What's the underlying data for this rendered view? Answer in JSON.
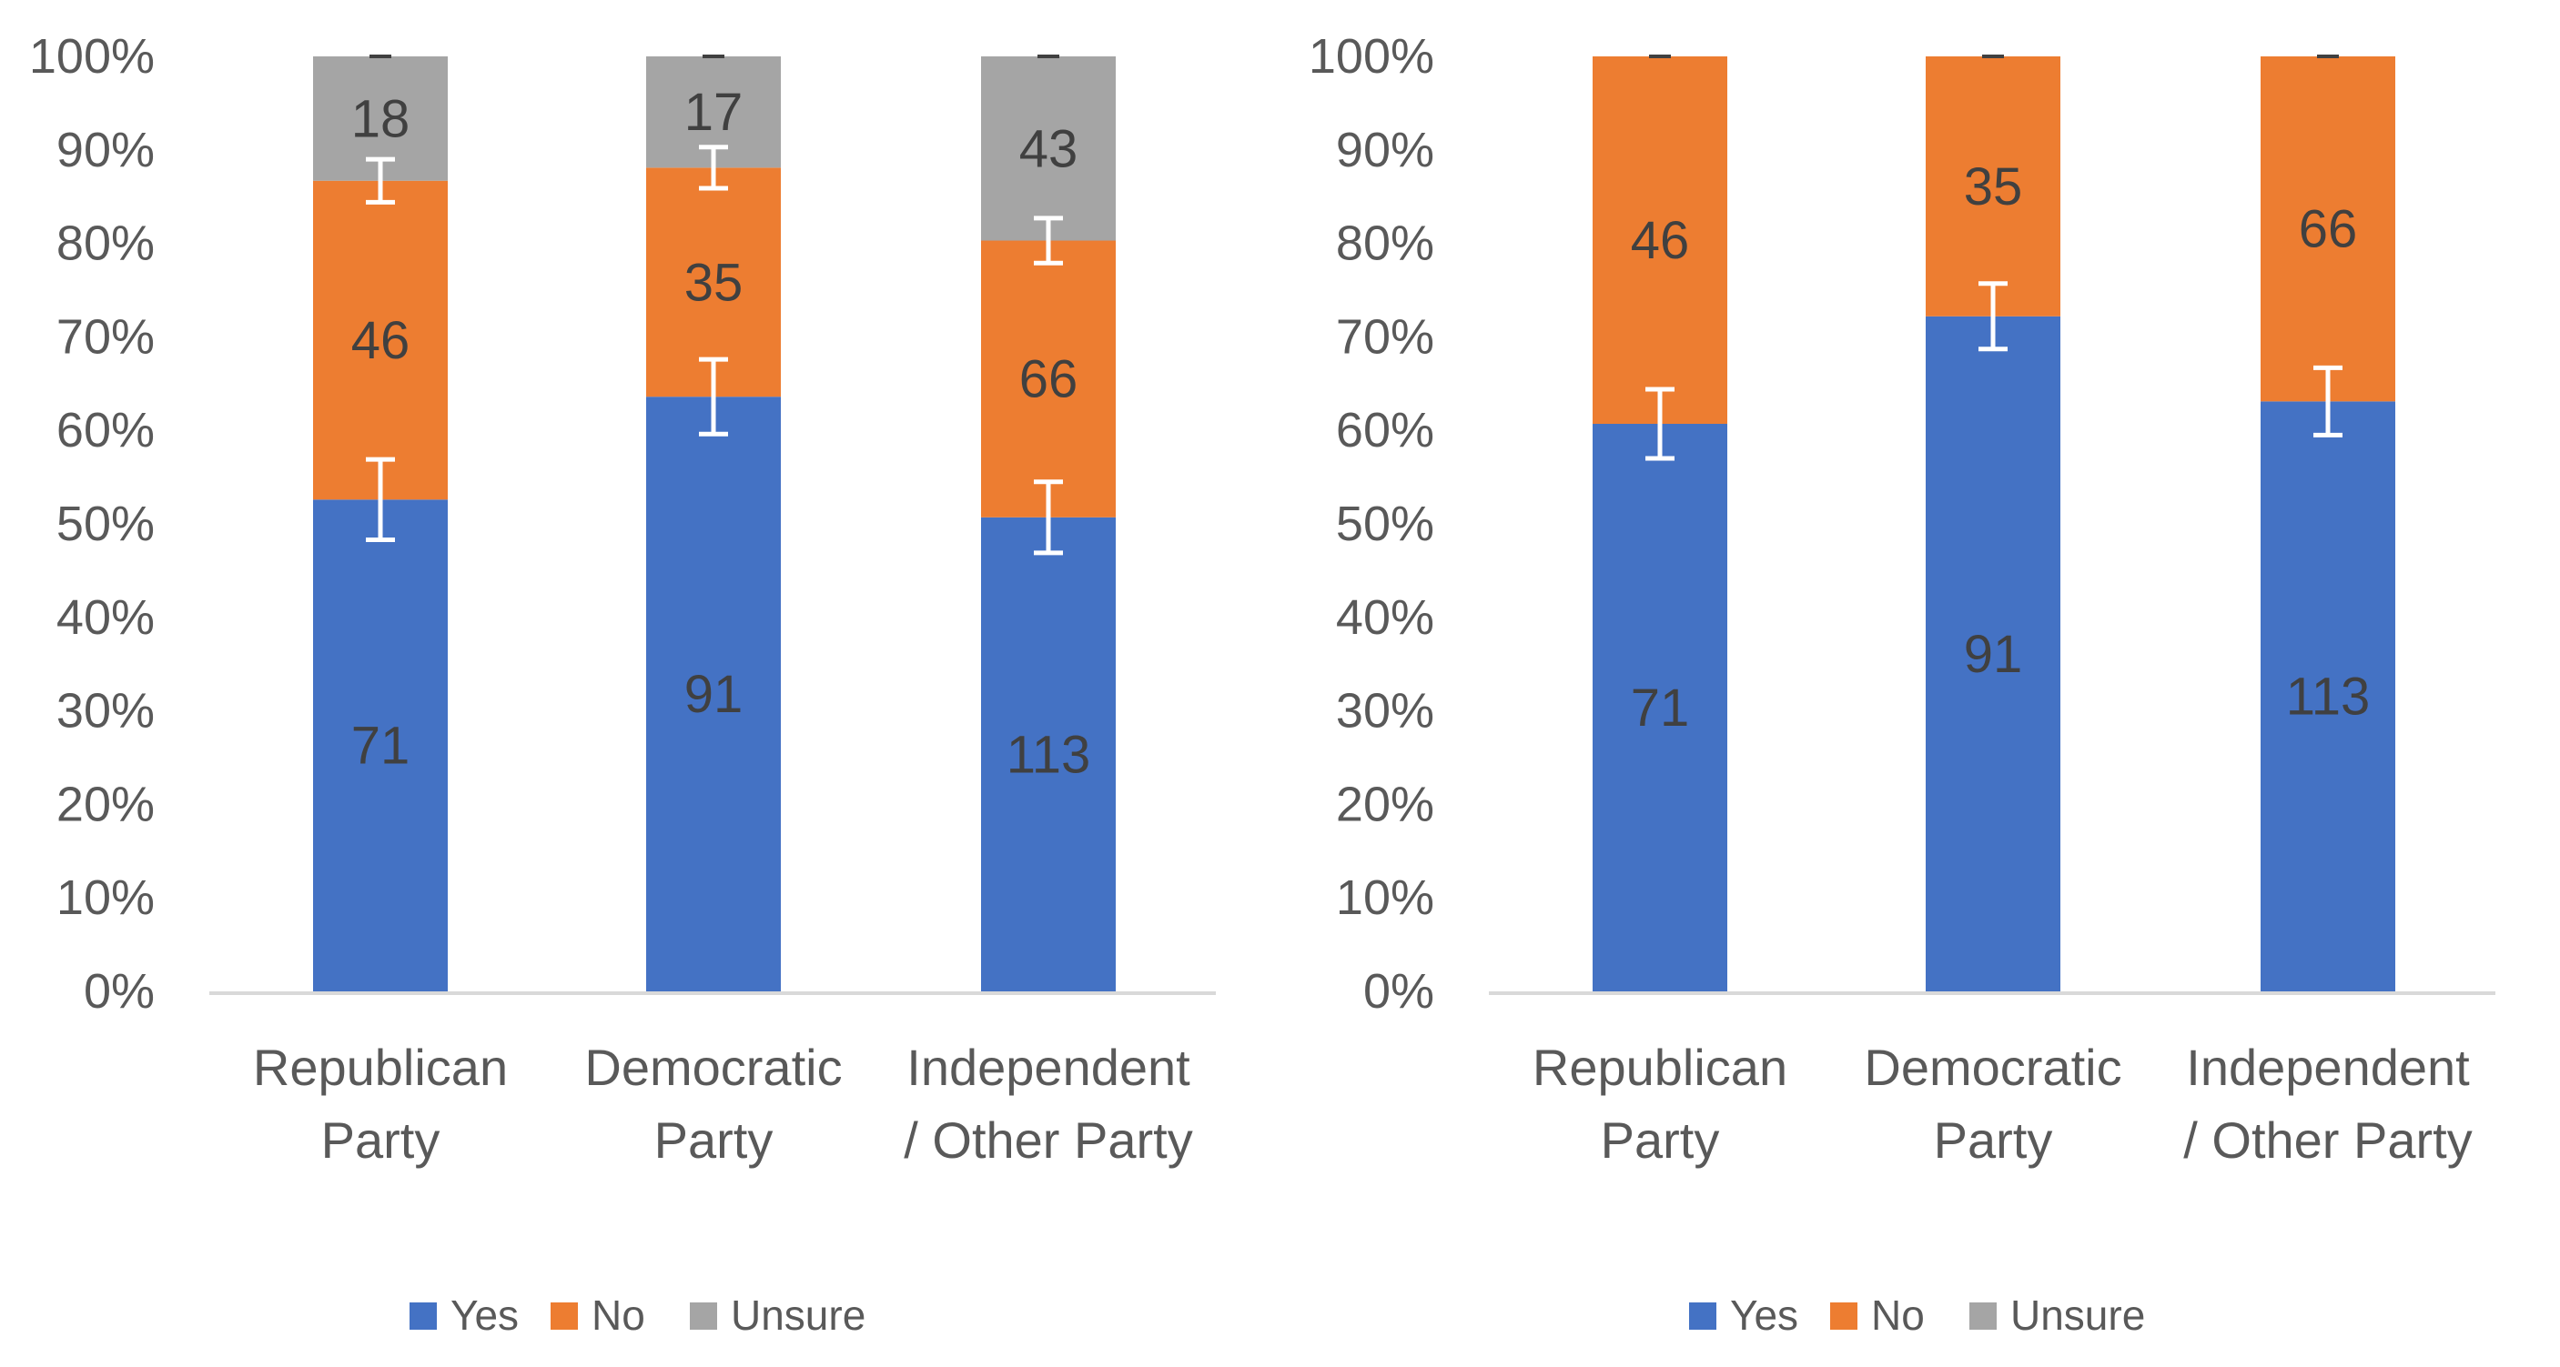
{
  "chart_data": [
    {
      "type": "bar",
      "stacked": true,
      "normalized": true,
      "categories": [
        "Republican Party",
        "Democratic Party",
        "Independent / Other Party"
      ],
      "category_lines": [
        [
          "Republican",
          "Party"
        ],
        [
          "Democratic",
          "Party"
        ],
        [
          "Independent",
          "/ Other Party"
        ]
      ],
      "series": [
        {
          "name": "Yes",
          "color": "#4472C4",
          "label_color": "#404040",
          "counts": [
            71,
            91,
            113
          ],
          "percent": [
            52.6,
            63.6,
            50.7
          ],
          "error": [
            4.3,
            4.0,
            3.8
          ]
        },
        {
          "name": "No",
          "color": "#ED7D31",
          "label_color": "#404040",
          "counts": [
            46,
            35,
            66
          ],
          "percent": [
            34.1,
            24.5,
            29.6
          ],
          "error": [
            2.3,
            2.2,
            2.4
          ]
        },
        {
          "name": "Unsure",
          "color": "#A5A5A5",
          "label_color": "#404040",
          "counts": [
            18,
            17,
            43
          ],
          "percent": [
            13.3,
            11.9,
            19.7
          ],
          "error": [
            0,
            0,
            0
          ]
        }
      ],
      "ylim": [
        0,
        100
      ],
      "yticks": [
        "0%",
        "10%",
        "20%",
        "30%",
        "40%",
        "50%",
        "60%",
        "70%",
        "80%",
        "90%",
        "100%"
      ],
      "legend": {
        "position": "bottom",
        "entries": [
          "Yes",
          "No",
          "Unsure"
        ]
      },
      "title": "",
      "xlabel": "",
      "ylabel": ""
    },
    {
      "type": "bar",
      "stacked": true,
      "normalized": true,
      "categories": [
        "Republican Party",
        "Democratic Party",
        "Independent / Other Party"
      ],
      "category_lines": [
        [
          "Republican",
          "Party"
        ],
        [
          "Democratic",
          "Party"
        ],
        [
          "Independent",
          "/ Other Party"
        ]
      ],
      "series": [
        {
          "name": "Yes",
          "color": "#4472C4",
          "label_color": "#404040",
          "counts": [
            71,
            91,
            113
          ],
          "percent": [
            60.7,
            72.2,
            63.1
          ],
          "error": [
            3.7,
            3.5,
            3.6
          ]
        },
        {
          "name": "No",
          "color": "#ED7D31",
          "label_color": "#404040",
          "counts": [
            46,
            35,
            66
          ],
          "percent": [
            39.3,
            27.8,
            36.9
          ],
          "error": [
            0,
            0,
            0
          ]
        },
        {
          "name": "Unsure",
          "color": "#A5A5A5",
          "label_color": "#404040",
          "counts": [
            0,
            0,
            0
          ],
          "percent": [
            0,
            0,
            0
          ],
          "error": [
            0,
            0,
            0
          ]
        }
      ],
      "ylim": [
        0,
        100
      ],
      "yticks": [
        "0%",
        "10%",
        "20%",
        "30%",
        "40%",
        "50%",
        "60%",
        "70%",
        "80%",
        "90%",
        "100%"
      ],
      "legend": {
        "position": "bottom",
        "entries": [
          "Yes",
          "No",
          "Unsure"
        ]
      },
      "title": "",
      "xlabel": "",
      "ylabel": ""
    }
  ]
}
